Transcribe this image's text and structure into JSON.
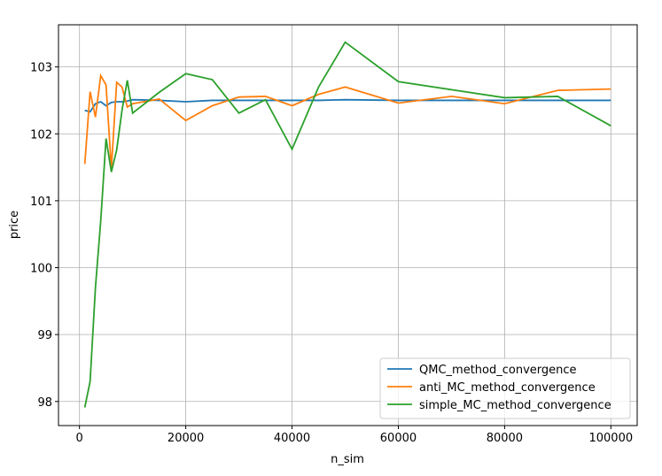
{
  "chart_data": {
    "type": "line",
    "x_label": "n_sim",
    "y_label": "price",
    "x": [
      1000,
      2000,
      3000,
      4000,
      5000,
      6000,
      7000,
      8000,
      9000,
      10000,
      15000,
      20000,
      25000,
      30000,
      35000,
      40000,
      45000,
      50000,
      60000,
      70000,
      80000,
      90000,
      100000
    ],
    "series": [
      {
        "name": "QMC_method_convergence",
        "color": "#1f77b4",
        "values": [
          102.35,
          102.33,
          102.45,
          102.48,
          102.42,
          102.47,
          102.48,
          102.48,
          102.49,
          102.51,
          102.5,
          102.48,
          102.5,
          102.5,
          102.5,
          102.5,
          102.5,
          102.51,
          102.5,
          102.5,
          102.5,
          102.5,
          102.5
        ]
      },
      {
        "name": "anti_MC_method_convergence",
        "color": "#ff7f0e",
        "values": [
          101.55,
          102.63,
          102.25,
          102.87,
          102.73,
          101.48,
          102.77,
          102.7,
          102.4,
          102.45,
          102.52,
          102.2,
          102.42,
          102.55,
          102.56,
          102.42,
          102.59,
          102.7,
          102.46,
          102.56,
          102.45,
          102.65,
          102.67
        ]
      },
      {
        "name": "simple_MC_method_convergence",
        "color": "#2ca02c",
        "values": [
          97.91,
          98.3,
          99.7,
          100.7,
          101.93,
          101.43,
          101.76,
          102.35,
          102.8,
          102.31,
          102.62,
          102.9,
          102.81,
          102.31,
          102.51,
          101.77,
          102.7,
          103.37,
          102.78,
          102.66,
          102.54,
          102.56,
          102.12
        ]
      }
    ],
    "xlim": [
      -3950,
      104950
    ],
    "xticks": [
      0,
      20000,
      40000,
      60000,
      80000,
      100000
    ],
    "ylim": [
      97.64,
      103.63
    ],
    "yticks": [
      98,
      99,
      100,
      101,
      102,
      103
    ],
    "grid": true,
    "legend": "lower right"
  }
}
